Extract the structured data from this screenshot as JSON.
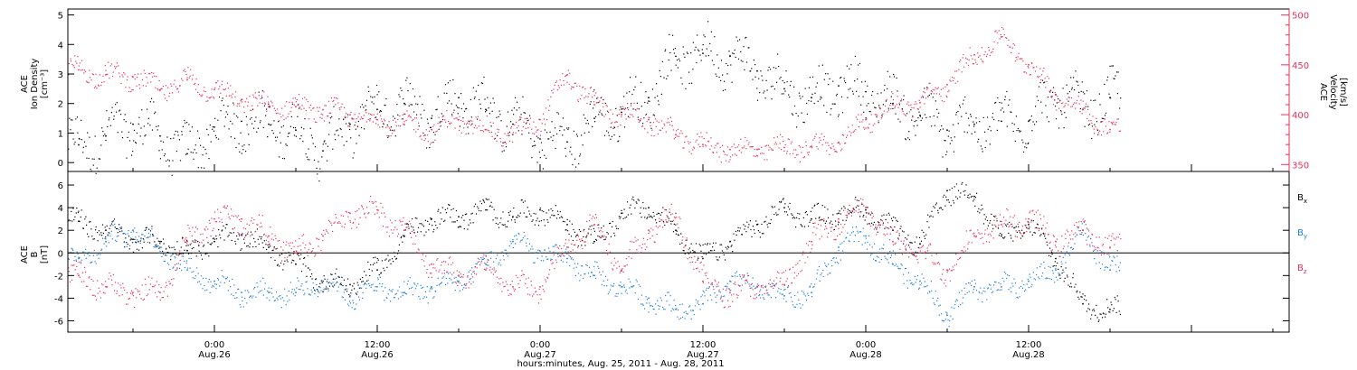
{
  "colors": {
    "density": "#000000",
    "velocity": "#e8305a",
    "bx": "#000000",
    "by": "#1a7fd6",
    "bz": "#e8305a",
    "axis": "#000000"
  },
  "chart_data": [
    {
      "type": "scatter",
      "panel": "top",
      "left_axis_label": [
        "ACE",
        "Ion Density",
        "[cm⁻³]"
      ],
      "right_axis_label": [
        "ACE",
        "Velocity",
        "[km/s]"
      ],
      "left_ylim": [
        -0.3,
        5.2
      ],
      "left_yticks": [
        0,
        1,
        2,
        3,
        4,
        5
      ],
      "right_ylim": [
        343,
        506
      ],
      "right_yticks": [
        350,
        400,
        450,
        500
      ],
      "xlim_hours": [
        -10.8,
        79.2
      ],
      "series": [
        {
          "axis": "left",
          "x": [
            -10,
            -8,
            -6,
            -4,
            -2,
            0,
            2,
            4,
            6,
            8,
            10,
            12,
            14,
            16,
            18,
            20,
            22,
            24,
            26,
            28,
            30,
            32,
            34,
            36,
            38,
            40,
            42,
            44,
            46,
            48,
            50,
            52,
            54,
            56,
            58,
            60,
            62,
            64,
            66
          ],
          "y": [
            0.6,
            0.9,
            1.3,
            0.9,
            0.3,
            1.2,
            1.4,
            1.3,
            1.1,
            0.4,
            1.3,
            1.8,
            2.0,
            1.5,
            2.2,
            1.8,
            1.3,
            0.8,
            0.7,
            1.5,
            1.7,
            2.2,
            3.6,
            3.7,
            3.6,
            3.1,
            2.5,
            2.2,
            2.6,
            2.4,
            2.0,
            1.6,
            1.1,
            1.3,
            1.4,
            1.4,
            2.3,
            1.8,
            2.2
          ]
        },
        {
          "axis": "right",
          "x": [
            -10,
            -8,
            -6,
            -4,
            -2,
            0,
            2,
            4,
            6,
            8,
            10,
            12,
            14,
            16,
            18,
            20,
            22,
            24,
            26,
            28,
            30,
            32,
            34,
            36,
            38,
            40,
            42,
            44,
            46,
            48,
            50,
            52,
            54,
            56,
            58,
            60,
            62,
            64,
            66
          ],
          "y": [
            445,
            440,
            438,
            425,
            435,
            425,
            415,
            408,
            408,
            405,
            400,
            395,
            390,
            385,
            395,
            385,
            380,
            395,
            440,
            410,
            400,
            395,
            380,
            370,
            365,
            365,
            367,
            368,
            372,
            395,
            410,
            412,
            430,
            460,
            478,
            450,
            420,
            405,
            385
          ]
        }
      ]
    },
    {
      "type": "scatter",
      "panel": "bottom",
      "left_axis_label": [
        "ACE",
        "B",
        "[nT]"
      ],
      "ylim": [
        -7,
        7.2
      ],
      "yticks": [
        -6,
        -4,
        -2,
        0,
        2,
        4,
        6
      ],
      "xlim_hours": [
        -10.8,
        79.2
      ],
      "xticks_hours": [
        0,
        12,
        24,
        36,
        48,
        60,
        72
      ],
      "xtick_time_labels": [
        "0:00",
        "12:00",
        "0:00",
        "12:00",
        "0:00",
        "12:00"
      ],
      "xtick_date_labels": [
        "Aug.26",
        "Aug.26",
        "Aug.27",
        "Aug.27",
        "Aug.28",
        "Aug.28"
      ],
      "xlabel": "hours:minutes, Aug. 25, 2011 - Aug. 28, 2011",
      "series": [
        {
          "name": "Bx",
          "x": [
            -10,
            -8,
            -6,
            -4,
            -2,
            0,
            2,
            4,
            6,
            8,
            10,
            12,
            14,
            16,
            18,
            20,
            22,
            24,
            26,
            28,
            30,
            32,
            34,
            36,
            38,
            40,
            42,
            44,
            46,
            48,
            50,
            52,
            54,
            56,
            58,
            60,
            62,
            64,
            66
          ],
          "y": [
            2.8,
            2.0,
            1.2,
            1.0,
            0.2,
            1.0,
            1.6,
            0.5,
            -1.0,
            -2.5,
            -2.8,
            -1.5,
            1.5,
            3.0,
            3.2,
            3.8,
            3.2,
            3.8,
            2.5,
            1.0,
            3.5,
            4.0,
            2.0,
            -0.5,
            1.0,
            2.5,
            4.0,
            3.0,
            3.5,
            3.8,
            2.0,
            0.8,
            5.5,
            5.0,
            1.5,
            2.5,
            -0.5,
            -4.5,
            -5.0
          ]
        },
        {
          "name": "By",
          "x": [
            -10,
            -8,
            -6,
            -4,
            -2,
            0,
            2,
            4,
            6,
            8,
            10,
            12,
            14,
            16,
            18,
            20,
            22,
            24,
            26,
            28,
            30,
            32,
            34,
            36,
            38,
            40,
            42,
            44,
            46,
            48,
            50,
            52,
            54,
            56,
            58,
            60,
            62,
            64,
            66
          ],
          "y": [
            -0.5,
            1.0,
            2.0,
            0.5,
            -1.5,
            -2.5,
            -3.5,
            -3.5,
            -3.5,
            -2.5,
            -3.8,
            -3.0,
            -3.5,
            -3.0,
            -2.5,
            -1.0,
            1.0,
            0.0,
            -0.5,
            -2.0,
            -3.0,
            -4.0,
            -5.0,
            -4.5,
            -2.5,
            -3.0,
            -3.8,
            -3.5,
            0.5,
            1.5,
            -1.0,
            -2.5,
            -5.5,
            -3.0,
            -3.0,
            -2.5,
            -1.5,
            2.0,
            -1.5
          ]
        },
        {
          "name": "Bz",
          "x": [
            -10,
            -8,
            -6,
            -4,
            -2,
            0,
            2,
            4,
            6,
            8,
            10,
            12,
            14,
            16,
            18,
            20,
            22,
            24,
            26,
            28,
            30,
            32,
            34,
            36,
            38,
            40,
            42,
            44,
            46,
            48,
            50,
            52,
            54,
            56,
            58,
            60,
            62,
            64,
            66
          ],
          "y": [
            -2.0,
            -3.0,
            -3.5,
            -3.5,
            1.0,
            3.0,
            3.0,
            1.5,
            0.0,
            1.5,
            3.5,
            3.8,
            2.0,
            -1.0,
            -2.0,
            -1.5,
            -3.0,
            -3.0,
            0.5,
            2.5,
            -1.5,
            2.0,
            3.5,
            -2.5,
            -3.5,
            -3.0,
            -2.8,
            1.0,
            3.0,
            4.0,
            1.0,
            0.0,
            -1.5,
            1.5,
            2.5,
            3.0,
            1.0,
            2.0,
            0.5
          ]
        }
      ],
      "legend": [
        "Bx",
        "By",
        "Bz"
      ],
      "legend_placement": "right"
    }
  ]
}
